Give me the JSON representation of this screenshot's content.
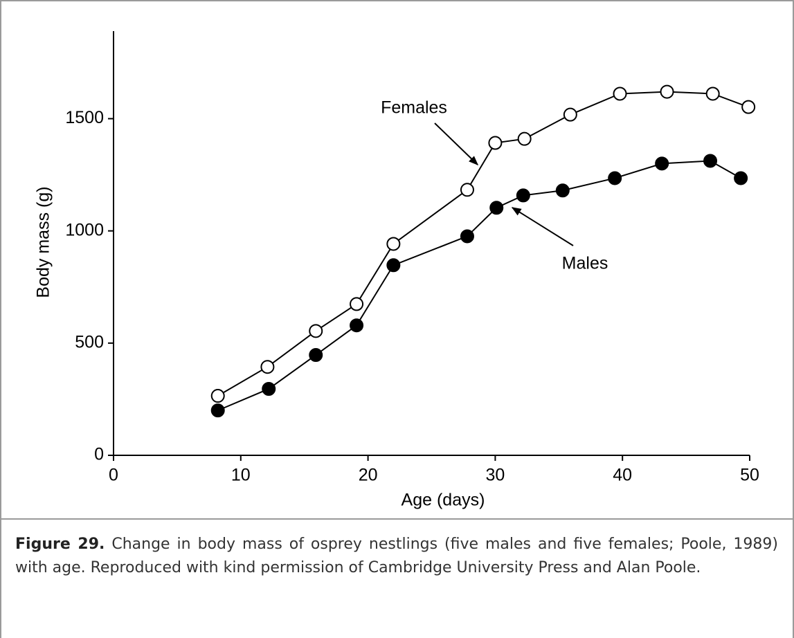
{
  "chart_data": {
    "type": "line",
    "xlabel": "Age (days)",
    "ylabel": "Body mass (g)",
    "xlim": [
      0,
      50
    ],
    "xticks": [
      0,
      10,
      20,
      30,
      40,
      50
    ],
    "ylim": [
      0,
      1890
    ],
    "yticks": [
      0,
      500,
      1000,
      1500
    ],
    "series": [
      {
        "name": "Females",
        "color": "#000000",
        "marker_fill": "#ffffff",
        "x": [
          8.2,
          12.1,
          15.9,
          19.1,
          22.0,
          27.8,
          30.0,
          32.3,
          35.9,
          39.8,
          43.5,
          47.1,
          49.9
        ],
        "values": [
          265,
          394,
          554,
          674,
          942,
          1183,
          1392,
          1410,
          1518,
          1611,
          1620,
          1611,
          1552
        ]
      },
      {
        "name": "Males",
        "color": "#000000",
        "marker_fill": "#000000",
        "x": [
          8.2,
          12.2,
          15.9,
          19.1,
          22.0,
          27.8,
          30.1,
          32.2,
          35.3,
          39.4,
          43.1,
          46.9,
          49.3
        ],
        "values": [
          200,
          296,
          447,
          579,
          847,
          976,
          1103,
          1158,
          1180,
          1235,
          1300,
          1312,
          1235
        ]
      }
    ]
  },
  "caption": {
    "label": "Figure 29.",
    "text": "Change in body mass of osprey nestlings (five males and five females; Poole, 1989) with age. Reproduced with kind permission of Cambridge University Press and Alan Poole."
  }
}
